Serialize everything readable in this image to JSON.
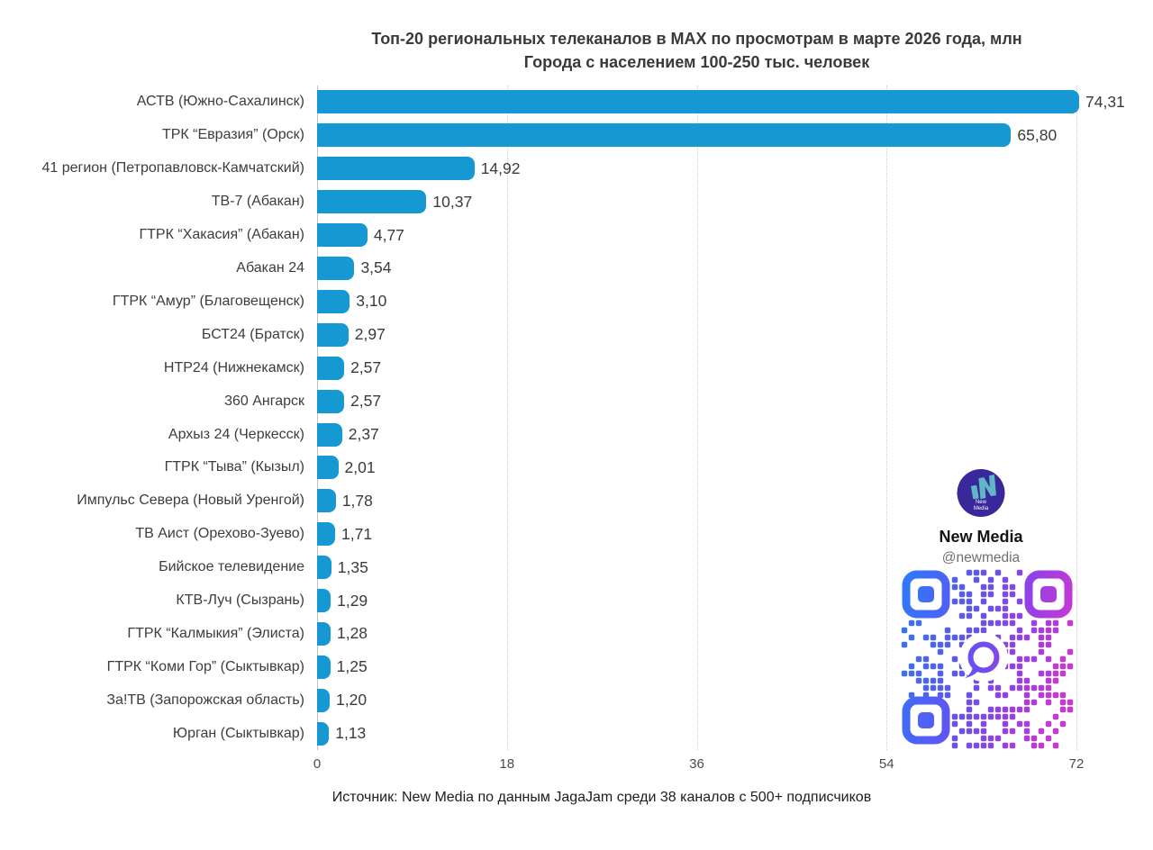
{
  "title": {
    "line1": "Топ-20 региональных телеканалов в MAX по просмотрам в марте 2026 года, млн",
    "line2": "Города с населением 100-250 тыс. человек"
  },
  "chart_data": {
    "type": "bar",
    "orientation": "horizontal",
    "categories": [
      "АСТВ (Южно-Сахалинск)",
      "ТРК “Евразия” (Орск)",
      "41 регион (Петропавловск-Камчатский)",
      "ТВ-7 (Абакан)",
      "ГТРК “Хакасия” (Абакан)",
      "Абакан 24",
      "ГТРК “Амур” (Благовещенск)",
      "БСТ24 (Братск)",
      "НТР24 (Нижнекамск)",
      "360 Ангарск",
      "Архыз 24 (Черкесск)",
      "ГТРК “Тыва” (Кызыл)",
      "Импульс Севера (Новый Уренгой)",
      "ТВ Аист (Орехово-Зуево)",
      "Бийское телевидение",
      "КТВ-Луч (Сызрань)",
      "ГТРК “Калмыкия” (Элиста)",
      "ГТРК “Коми Гор” (Сыктывкар)",
      "За!ТВ (Запорожская область)",
      "Юрган (Сыктывкар)"
    ],
    "values": [
      74.31,
      65.8,
      14.92,
      10.37,
      4.77,
      3.54,
      3.1,
      2.97,
      2.57,
      2.57,
      2.37,
      2.01,
      1.78,
      1.71,
      1.35,
      1.29,
      1.28,
      1.25,
      1.2,
      1.13
    ],
    "value_labels": [
      "74,31",
      "65,80",
      "14,92",
      "10,37",
      "4,77",
      "3,54",
      "3,10",
      "2,97",
      "2,57",
      "2,57",
      "2,37",
      "2,01",
      "1,78",
      "1,71",
      "1,35",
      "1,29",
      "1,28",
      "1,25",
      "1,20",
      "1,13"
    ],
    "x_ticks": [
      0,
      18,
      36,
      54,
      72
    ],
    "x_tick_labels": [
      "0",
      "18",
      "36",
      "54",
      "72"
    ],
    "axis_max": 72,
    "xlim": [
      0,
      72
    ],
    "grid": "vertical-dotted",
    "bar_color": "#1699D3"
  },
  "branding": {
    "name": "New Media",
    "handle": "@newmedia",
    "logo_text_line1": "New",
    "logo_text_line2": "Media"
  },
  "colors": {
    "bar": "#1699D3",
    "logo_bg": "#38289A",
    "logo_accent": "#5FB7C6",
    "qr_c1": "#2B7BFA",
    "qr_c2": "#5F55F2",
    "qr_c3": "#9340E8",
    "qr_c4": "#C538D4"
  },
  "footer": {
    "source": "Источник: New Media по данным JagaJam среди 38 каналов с 500+ подписчиков"
  }
}
